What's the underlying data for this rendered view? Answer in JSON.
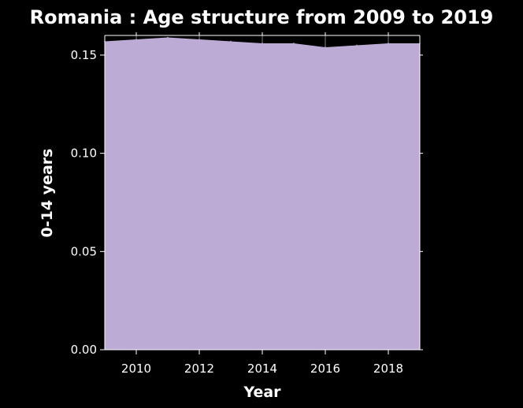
{
  "chart_data": {
    "type": "area",
    "title": "Romania : Age structure from 2009 to 2019",
    "xlabel": "Year",
    "ylabel": "0-14 years",
    "x": [
      2009,
      2010,
      2011,
      2012,
      2013,
      2014,
      2015,
      2016,
      2017,
      2018,
      2019
    ],
    "values": [
      0.157,
      0.158,
      0.159,
      0.158,
      0.157,
      0.156,
      0.156,
      0.154,
      0.155,
      0.156,
      0.156
    ],
    "xlim": [
      2009,
      2019
    ],
    "ylim": [
      0,
      0.16
    ],
    "xticks": [
      "2010",
      "2012",
      "2014",
      "2016",
      "2018"
    ],
    "yticks": [
      "0.00",
      "0.05",
      "0.10",
      "0.15"
    ],
    "fill_color": "#bcabd4",
    "background_color": "#000000",
    "text_color": "#ffffff",
    "grid": true,
    "legend": "none"
  }
}
